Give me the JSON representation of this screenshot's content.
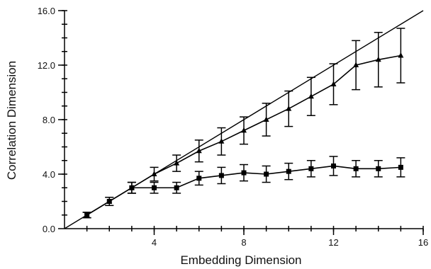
{
  "chart_data": {
    "type": "line",
    "title": "",
    "xlabel": "Embedding Dimension",
    "ylabel": "Correlation Dimension",
    "xlim": [
      0,
      16
    ],
    "ylim": [
      0,
      16
    ],
    "x_ticks": [
      4,
      8,
      12,
      16
    ],
    "x_tick_labels": [
      "4",
      "8",
      "12",
      "16"
    ],
    "x_minor_step": 1,
    "y_ticks": [
      0,
      4,
      8,
      12,
      16
    ],
    "y_tick_labels": [
      "0.0",
      "4.0",
      "8.0",
      "12.0",
      "16.0"
    ],
    "y_minor_step": 1,
    "grid": false,
    "legend": "none",
    "reference_line": {
      "x": [
        0,
        16
      ],
      "y": [
        0,
        16
      ]
    },
    "series": [
      {
        "marker": "triangle",
        "x": [
          1,
          2,
          3,
          4,
          5,
          6,
          7,
          8,
          9,
          10,
          11,
          12,
          13,
          14,
          15
        ],
        "y": [
          1.0,
          2.0,
          3.0,
          4.0,
          4.8,
          5.7,
          6.4,
          7.2,
          8.0,
          8.8,
          9.7,
          10.6,
          12.0,
          12.4,
          12.7
        ],
        "err": [
          0.2,
          0.3,
          0.4,
          0.5,
          0.6,
          0.8,
          1.0,
          1.0,
          1.2,
          1.3,
          1.4,
          1.5,
          1.8,
          2.0,
          2.0
        ]
      },
      {
        "marker": "square",
        "x": [
          1,
          2,
          3,
          4,
          5,
          6,
          7,
          8,
          9,
          10,
          11,
          12,
          13,
          14,
          15
        ],
        "y": [
          1.0,
          2.0,
          3.0,
          3.0,
          3.0,
          3.7,
          3.9,
          4.1,
          4.0,
          4.2,
          4.4,
          4.6,
          4.4,
          4.4,
          4.5
        ],
        "err": [
          0.2,
          0.3,
          0.4,
          0.4,
          0.4,
          0.5,
          0.6,
          0.6,
          0.6,
          0.6,
          0.6,
          0.7,
          0.6,
          0.6,
          0.7
        ]
      }
    ]
  }
}
